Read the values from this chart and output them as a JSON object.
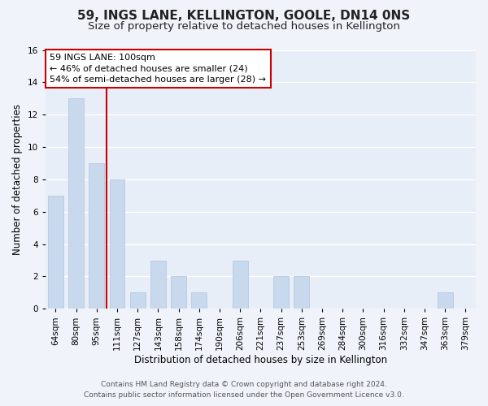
{
  "title": "59, INGS LANE, KELLINGTON, GOOLE, DN14 0NS",
  "subtitle": "Size of property relative to detached houses in Kellington",
  "xlabel": "Distribution of detached houses by size in Kellington",
  "ylabel": "Number of detached properties",
  "footer_line1": "Contains HM Land Registry data © Crown copyright and database right 2024.",
  "footer_line2": "Contains public sector information licensed under the Open Government Licence v3.0.",
  "categories": [
    "64sqm",
    "80sqm",
    "95sqm",
    "111sqm",
    "127sqm",
    "143sqm",
    "158sqm",
    "174sqm",
    "190sqm",
    "206sqm",
    "221sqm",
    "237sqm",
    "253sqm",
    "269sqm",
    "284sqm",
    "300sqm",
    "316sqm",
    "332sqm",
    "347sqm",
    "363sqm",
    "379sqm"
  ],
  "values": [
    7,
    13,
    9,
    8,
    1,
    3,
    2,
    1,
    0,
    3,
    0,
    2,
    2,
    0,
    0,
    0,
    0,
    0,
    0,
    1,
    0
  ],
  "bar_color": "#c8d9ed",
  "bar_edge_color": "#b0c4de",
  "highlight_line_color": "#cc0000",
  "annotation_line1": "59 INGS LANE: 100sqm",
  "annotation_line2": "← 46% of detached houses are smaller (24)",
  "annotation_line3": "54% of semi-detached houses are larger (28) →",
  "annotation_box_color": "#ffffff",
  "annotation_box_edge_color": "#cc0000",
  "ylim": [
    0,
    16
  ],
  "yticks": [
    0,
    2,
    4,
    6,
    8,
    10,
    12,
    14,
    16
  ],
  "background_color": "#f0f4fa",
  "plot_background_color": "#e8eef8",
  "grid_color": "#ffffff",
  "title_fontsize": 11,
  "subtitle_fontsize": 9.5,
  "axis_label_fontsize": 8.5,
  "tick_fontsize": 7.5,
  "annotation_fontsize": 8,
  "footer_fontsize": 6.5
}
